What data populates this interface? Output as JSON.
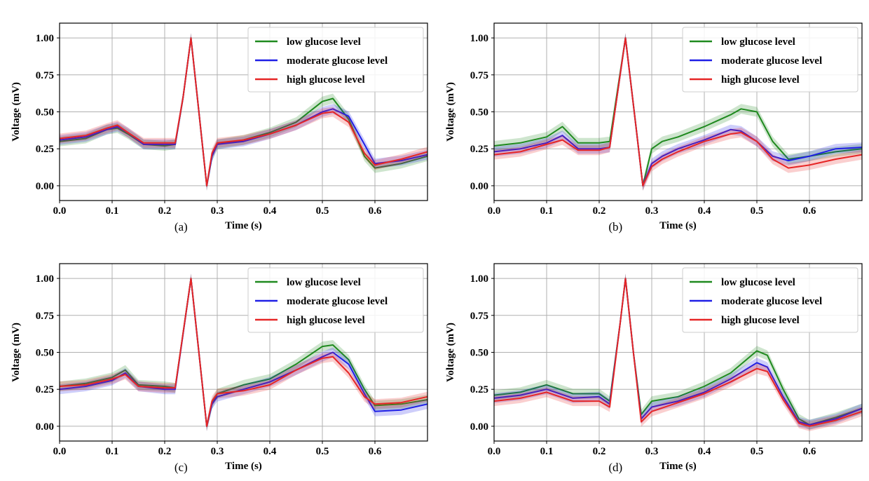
{
  "colors": {
    "low": "#1f8a1f",
    "moderate": "#1f1fe6",
    "high": "#e62626",
    "grid": "#b0b0b0"
  },
  "chart_data": [
    {
      "type": "line",
      "panel_label": "(a)",
      "xlabel": "Time (s)",
      "ylabel": "Voltage (mV)",
      "xlim": [
        0.0,
        0.7
      ],
      "ylim": [
        -0.1,
        1.1
      ],
      "xticks": [
        "0.0",
        "0.1",
        "0.2",
        "0.3",
        "0.4",
        "0.5",
        "0.6"
      ],
      "yticks": [
        "0.00",
        "0.25",
        "0.50",
        "0.75",
        "1.00"
      ],
      "grid": true,
      "legend": "top-right",
      "series": [
        {
          "name": "low glucose level",
          "key": "low",
          "x": [
            0,
            0.05,
            0.09,
            0.11,
            0.13,
            0.16,
            0.2,
            0.22,
            0.235,
            0.25,
            0.265,
            0.28,
            0.29,
            0.3,
            0.35,
            0.4,
            0.45,
            0.5,
            0.52,
            0.55,
            0.58,
            0.6,
            0.65,
            0.7
          ],
          "y": [
            0.3,
            0.32,
            0.38,
            0.39,
            0.35,
            0.28,
            0.27,
            0.28,
            0.6,
            1.0,
            0.5,
            0.0,
            0.2,
            0.28,
            0.31,
            0.36,
            0.43,
            0.57,
            0.59,
            0.45,
            0.2,
            0.12,
            0.15,
            0.2
          ]
        },
        {
          "name": "moderate glucose level",
          "key": "moderate",
          "x": [
            0,
            0.05,
            0.09,
            0.11,
            0.13,
            0.16,
            0.2,
            0.22,
            0.235,
            0.25,
            0.265,
            0.28,
            0.29,
            0.3,
            0.35,
            0.4,
            0.45,
            0.5,
            0.52,
            0.55,
            0.58,
            0.6,
            0.65,
            0.7
          ],
          "y": [
            0.31,
            0.33,
            0.38,
            0.4,
            0.36,
            0.28,
            0.28,
            0.28,
            0.6,
            1.0,
            0.5,
            0.0,
            0.2,
            0.28,
            0.3,
            0.35,
            0.41,
            0.5,
            0.52,
            0.47,
            0.28,
            0.15,
            0.17,
            0.21
          ]
        },
        {
          "name": "high glucose level",
          "key": "high",
          "x": [
            0,
            0.05,
            0.09,
            0.11,
            0.13,
            0.16,
            0.2,
            0.22,
            0.235,
            0.25,
            0.265,
            0.28,
            0.29,
            0.3,
            0.35,
            0.4,
            0.45,
            0.5,
            0.52,
            0.55,
            0.58,
            0.6,
            0.65,
            0.7
          ],
          "y": [
            0.32,
            0.34,
            0.39,
            0.41,
            0.36,
            0.29,
            0.29,
            0.29,
            0.6,
            1.0,
            0.5,
            0.0,
            0.22,
            0.29,
            0.31,
            0.35,
            0.41,
            0.49,
            0.5,
            0.43,
            0.22,
            0.14,
            0.18,
            0.23
          ]
        }
      ]
    },
    {
      "type": "line",
      "panel_label": "(b)",
      "xlabel": "Time (s)",
      "ylabel": "Voltage (mV)",
      "xlim": [
        0.0,
        0.7
      ],
      "ylim": [
        -0.1,
        1.1
      ],
      "xticks": [
        "0.0",
        "0.1",
        "0.2",
        "0.3",
        "0.4",
        "0.5",
        "0.6"
      ],
      "yticks": [
        "0.00",
        "0.25",
        "0.50",
        "0.75",
        "1.00"
      ],
      "grid": true,
      "legend": "top-right",
      "series": [
        {
          "name": "low glucose level",
          "key": "low",
          "x": [
            0,
            0.05,
            0.1,
            0.13,
            0.16,
            0.2,
            0.22,
            0.25,
            0.27,
            0.283,
            0.3,
            0.32,
            0.35,
            0.4,
            0.45,
            0.47,
            0.5,
            0.53,
            0.56,
            0.6,
            0.65,
            0.7
          ],
          "y": [
            0.27,
            0.29,
            0.33,
            0.4,
            0.29,
            0.29,
            0.3,
            1.0,
            0.4,
            0.0,
            0.25,
            0.3,
            0.33,
            0.4,
            0.48,
            0.52,
            0.5,
            0.3,
            0.18,
            0.2,
            0.23,
            0.25
          ]
        },
        {
          "name": "moderate glucose level",
          "key": "moderate",
          "x": [
            0,
            0.05,
            0.1,
            0.13,
            0.16,
            0.2,
            0.22,
            0.25,
            0.27,
            0.283,
            0.3,
            0.32,
            0.35,
            0.4,
            0.45,
            0.47,
            0.5,
            0.53,
            0.56,
            0.6,
            0.65,
            0.7
          ],
          "y": [
            0.23,
            0.25,
            0.29,
            0.34,
            0.25,
            0.25,
            0.26,
            1.0,
            0.4,
            0.0,
            0.15,
            0.2,
            0.25,
            0.31,
            0.38,
            0.37,
            0.3,
            0.2,
            0.17,
            0.2,
            0.25,
            0.26
          ]
        },
        {
          "name": "high glucose level",
          "key": "high",
          "x": [
            0,
            0.05,
            0.1,
            0.13,
            0.16,
            0.2,
            0.22,
            0.25,
            0.27,
            0.283,
            0.3,
            0.32,
            0.35,
            0.4,
            0.45,
            0.47,
            0.5,
            0.53,
            0.56,
            0.6,
            0.65,
            0.7
          ],
          "y": [
            0.21,
            0.23,
            0.28,
            0.31,
            0.24,
            0.24,
            0.26,
            1.0,
            0.4,
            0.0,
            0.13,
            0.18,
            0.23,
            0.3,
            0.35,
            0.36,
            0.3,
            0.18,
            0.12,
            0.14,
            0.18,
            0.21
          ]
        }
      ]
    },
    {
      "type": "line",
      "panel_label": "(c)",
      "xlabel": "Time (s)",
      "ylabel": "Voltage (mV)",
      "xlim": [
        0.0,
        0.7
      ],
      "ylim": [
        -0.1,
        1.1
      ],
      "xticks": [
        "0.0",
        "0.1",
        "0.2",
        "0.3",
        "0.4",
        "0.5",
        "0.6"
      ],
      "yticks": [
        "0.00",
        "0.25",
        "0.50",
        "0.75",
        "1.00"
      ],
      "grid": true,
      "legend": "top-right",
      "series": [
        {
          "name": "low glucose level",
          "key": "low",
          "x": [
            0,
            0.05,
            0.1,
            0.125,
            0.15,
            0.2,
            0.22,
            0.25,
            0.265,
            0.28,
            0.29,
            0.3,
            0.35,
            0.4,
            0.45,
            0.5,
            0.52,
            0.55,
            0.58,
            0.6,
            0.65,
            0.7
          ],
          "y": [
            0.27,
            0.29,
            0.33,
            0.38,
            0.28,
            0.27,
            0.26,
            1.0,
            0.5,
            0.0,
            0.15,
            0.22,
            0.28,
            0.32,
            0.42,
            0.54,
            0.55,
            0.45,
            0.25,
            0.14,
            0.15,
            0.18
          ]
        },
        {
          "name": "moderate glucose level",
          "key": "moderate",
          "x": [
            0,
            0.05,
            0.1,
            0.125,
            0.15,
            0.2,
            0.22,
            0.25,
            0.265,
            0.28,
            0.29,
            0.3,
            0.35,
            0.4,
            0.45,
            0.5,
            0.52,
            0.55,
            0.58,
            0.6,
            0.65,
            0.7
          ],
          "y": [
            0.25,
            0.27,
            0.31,
            0.36,
            0.27,
            0.25,
            0.25,
            1.0,
            0.5,
            0.0,
            0.15,
            0.2,
            0.25,
            0.3,
            0.38,
            0.47,
            0.5,
            0.42,
            0.22,
            0.1,
            0.11,
            0.15
          ]
        },
        {
          "name": "high glucose level",
          "key": "high",
          "x": [
            0,
            0.05,
            0.1,
            0.125,
            0.15,
            0.2,
            0.22,
            0.25,
            0.265,
            0.28,
            0.29,
            0.3,
            0.35,
            0.4,
            0.45,
            0.5,
            0.52,
            0.55,
            0.58,
            0.6,
            0.65,
            0.7
          ],
          "y": [
            0.27,
            0.28,
            0.32,
            0.35,
            0.27,
            0.26,
            0.26,
            1.0,
            0.5,
            0.0,
            0.17,
            0.22,
            0.24,
            0.28,
            0.38,
            0.46,
            0.47,
            0.36,
            0.2,
            0.15,
            0.16,
            0.2
          ]
        }
      ]
    },
    {
      "type": "line",
      "panel_label": "(d)",
      "xlabel": "Time (s)",
      "ylabel": "Voltage (mV)",
      "xlim": [
        0.0,
        0.7
      ],
      "ylim": [
        -0.1,
        1.1
      ],
      "xticks": [
        "0.0",
        "0.1",
        "0.2",
        "0.3",
        "0.4",
        "0.5",
        "0.6"
      ],
      "yticks": [
        "0.00",
        "0.25",
        "0.50",
        "0.75",
        "1.00"
      ],
      "grid": true,
      "legend": "top-right",
      "series": [
        {
          "name": "low glucose level",
          "key": "low",
          "x": [
            0,
            0.05,
            0.1,
            0.15,
            0.2,
            0.22,
            0.24,
            0.25,
            0.265,
            0.28,
            0.3,
            0.35,
            0.4,
            0.45,
            0.5,
            0.52,
            0.55,
            0.58,
            0.6,
            0.65,
            0.7
          ],
          "y": [
            0.21,
            0.23,
            0.28,
            0.22,
            0.22,
            0.17,
            0.7,
            1.0,
            0.5,
            0.08,
            0.17,
            0.2,
            0.27,
            0.36,
            0.51,
            0.48,
            0.25,
            0.05,
            0.01,
            0.06,
            0.12
          ]
        },
        {
          "name": "moderate glucose level",
          "key": "moderate",
          "x": [
            0,
            0.05,
            0.1,
            0.15,
            0.2,
            0.22,
            0.24,
            0.25,
            0.265,
            0.28,
            0.3,
            0.35,
            0.4,
            0.45,
            0.5,
            0.52,
            0.55,
            0.58,
            0.6,
            0.65,
            0.7
          ],
          "y": [
            0.19,
            0.21,
            0.25,
            0.19,
            0.2,
            0.15,
            0.7,
            1.0,
            0.5,
            0.05,
            0.13,
            0.17,
            0.23,
            0.32,
            0.43,
            0.4,
            0.2,
            0.03,
            0.01,
            0.05,
            0.12
          ]
        },
        {
          "name": "high glucose level",
          "key": "high",
          "x": [
            0,
            0.05,
            0.1,
            0.15,
            0.2,
            0.22,
            0.24,
            0.25,
            0.265,
            0.28,
            0.3,
            0.35,
            0.4,
            0.45,
            0.5,
            0.52,
            0.55,
            0.58,
            0.6,
            0.65,
            0.7
          ],
          "y": [
            0.17,
            0.19,
            0.23,
            0.17,
            0.17,
            0.13,
            0.7,
            1.0,
            0.5,
            0.03,
            0.1,
            0.16,
            0.22,
            0.3,
            0.39,
            0.37,
            0.18,
            0.02,
            0.0,
            0.04,
            0.1
          ]
        }
      ]
    }
  ]
}
